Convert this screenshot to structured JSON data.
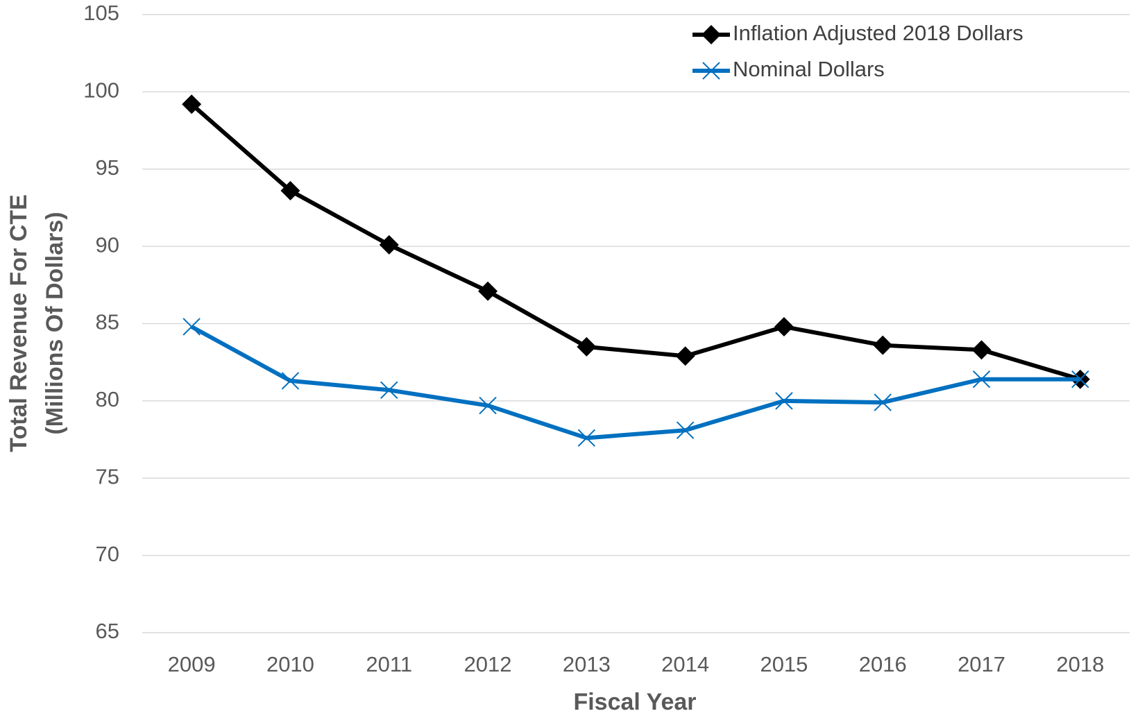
{
  "chart_data": {
    "type": "line",
    "xlabel": "Fiscal Year",
    "ylabel": [
      "Total Revenue For CTE",
      "(Millions Of Dollars)"
    ],
    "categories": [
      "2009",
      "2010",
      "2011",
      "2012",
      "2013",
      "2014",
      "2015",
      "2016",
      "2017",
      "2018"
    ],
    "series": [
      {
        "name": "Inflation Adjusted 2018 Dollars",
        "color": "#000000",
        "marker": "diamond",
        "values": [
          99.2,
          93.6,
          90.1,
          87.1,
          83.5,
          82.9,
          84.8,
          83.6,
          83.3,
          81.4
        ]
      },
      {
        "name": "Nominal Dollars",
        "color": "#0070c0",
        "marker": "x",
        "values": [
          84.8,
          81.3,
          80.7,
          79.7,
          77.6,
          78.1,
          80.0,
          79.9,
          81.4,
          81.4
        ]
      }
    ],
    "ylim": [
      65,
      105
    ],
    "yticks": [
      65,
      70,
      75,
      80,
      85,
      90,
      95,
      100,
      105
    ],
    "grid": true,
    "legend": "upper right"
  }
}
